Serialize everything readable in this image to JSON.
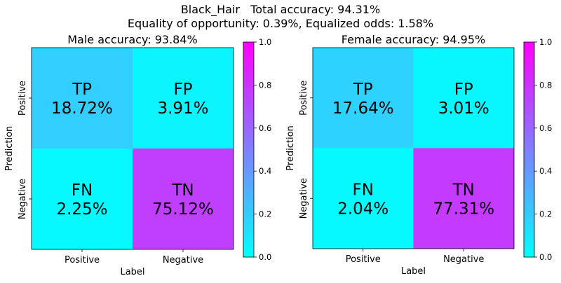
{
  "title_line1": "Black_Hair   Total accuracy: 94.31%",
  "title_line2": "Equality of opportunity: 0.39%, Equalized odds: 1.58%",
  "chart_data": [
    {
      "type": "heatmap",
      "title": "Male accuracy: 93.84%",
      "xlabel": "Label",
      "ylabel": "Prediction",
      "x_categories": [
        "Positive",
        "Negative"
      ],
      "y_categories": [
        "Positive",
        "Negative"
      ],
      "cells": [
        {
          "name": "TP",
          "row": 0,
          "col": 0,
          "value": 18.72,
          "text": "18.72%"
        },
        {
          "name": "FP",
          "row": 0,
          "col": 1,
          "value": 3.91,
          "text": "3.91%"
        },
        {
          "name": "FN",
          "row": 1,
          "col": 0,
          "value": 2.25,
          "text": "2.25%"
        },
        {
          "name": "TN",
          "row": 1,
          "col": 1,
          "value": 75.12,
          "text": "75.12%"
        }
      ],
      "colorbar": {
        "min": 0.0,
        "max": 1.0,
        "ticks": [
          "0.0",
          "0.2",
          "0.4",
          "0.6",
          "0.8",
          "1.0"
        ],
        "colormap": "cool"
      }
    },
    {
      "type": "heatmap",
      "title": "Female accuracy: 94.95%",
      "xlabel": "Label",
      "ylabel": "Prediction",
      "x_categories": [
        "Positive",
        "Negative"
      ],
      "y_categories": [
        "Positive",
        "Negative"
      ],
      "cells": [
        {
          "name": "TP",
          "row": 0,
          "col": 0,
          "value": 17.64,
          "text": "17.64%"
        },
        {
          "name": "FP",
          "row": 0,
          "col": 1,
          "value": 3.01,
          "text": "3.01%"
        },
        {
          "name": "FN",
          "row": 1,
          "col": 0,
          "value": 2.04,
          "text": "2.04%"
        },
        {
          "name": "TN",
          "row": 1,
          "col": 1,
          "value": 77.31,
          "text": "77.31%"
        }
      ],
      "colorbar": {
        "min": 0.0,
        "max": 1.0,
        "ticks": [
          "0.0",
          "0.2",
          "0.4",
          "0.6",
          "0.8",
          "1.0"
        ],
        "colormap": "cool"
      }
    }
  ]
}
